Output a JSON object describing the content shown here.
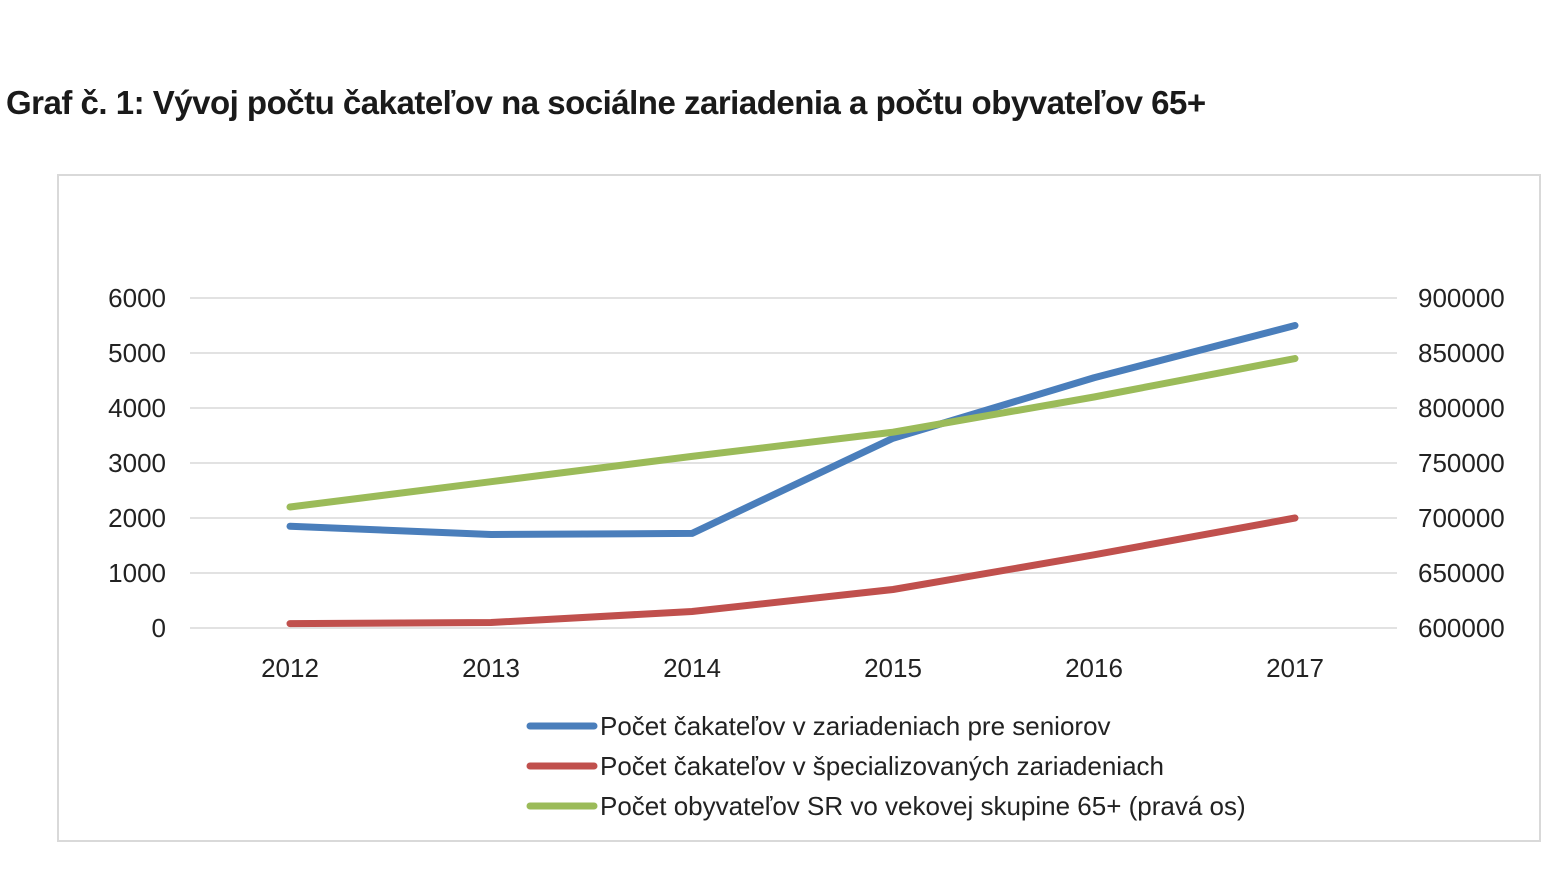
{
  "page": {
    "title": "Graf č. 1:  Vývoj počtu čakateľov na sociálne zariadenia a počtu obyvateľov 65+"
  },
  "chart_data": {
    "type": "line",
    "categories": [
      "2012",
      "2013",
      "2014",
      "2015",
      "2016",
      "2017"
    ],
    "y_left": {
      "min": 0,
      "max": 6000,
      "ticks": [
        0,
        1000,
        2000,
        3000,
        4000,
        5000,
        6000
      ]
    },
    "y_right": {
      "min": 600000,
      "max": 900000,
      "ticks": [
        600000,
        650000,
        700000,
        750000,
        800000,
        850000,
        900000
      ]
    },
    "grid": true,
    "legend_position": "bottom",
    "series": [
      {
        "name": "Počet čakateľov v zariadeniach pre seniorov",
        "axis": "left",
        "color": "#4a7ebb",
        "values": [
          1850,
          1700,
          1720,
          3450,
          4550,
          5500
        ]
      },
      {
        "name": "Počet čakateľov v špecializovaných zariadeniach",
        "axis": "left",
        "color": "#c0504d",
        "values": [
          80,
          100,
          300,
          700,
          1330,
          2000
        ]
      },
      {
        "name": "Počet obyvateľov SR vo vekovej skupine 65+ (pravá os)",
        "axis": "right",
        "color": "#9bbb59",
        "values": [
          710000,
          733000,
          756000,
          778000,
          810000,
          845000
        ]
      }
    ]
  }
}
